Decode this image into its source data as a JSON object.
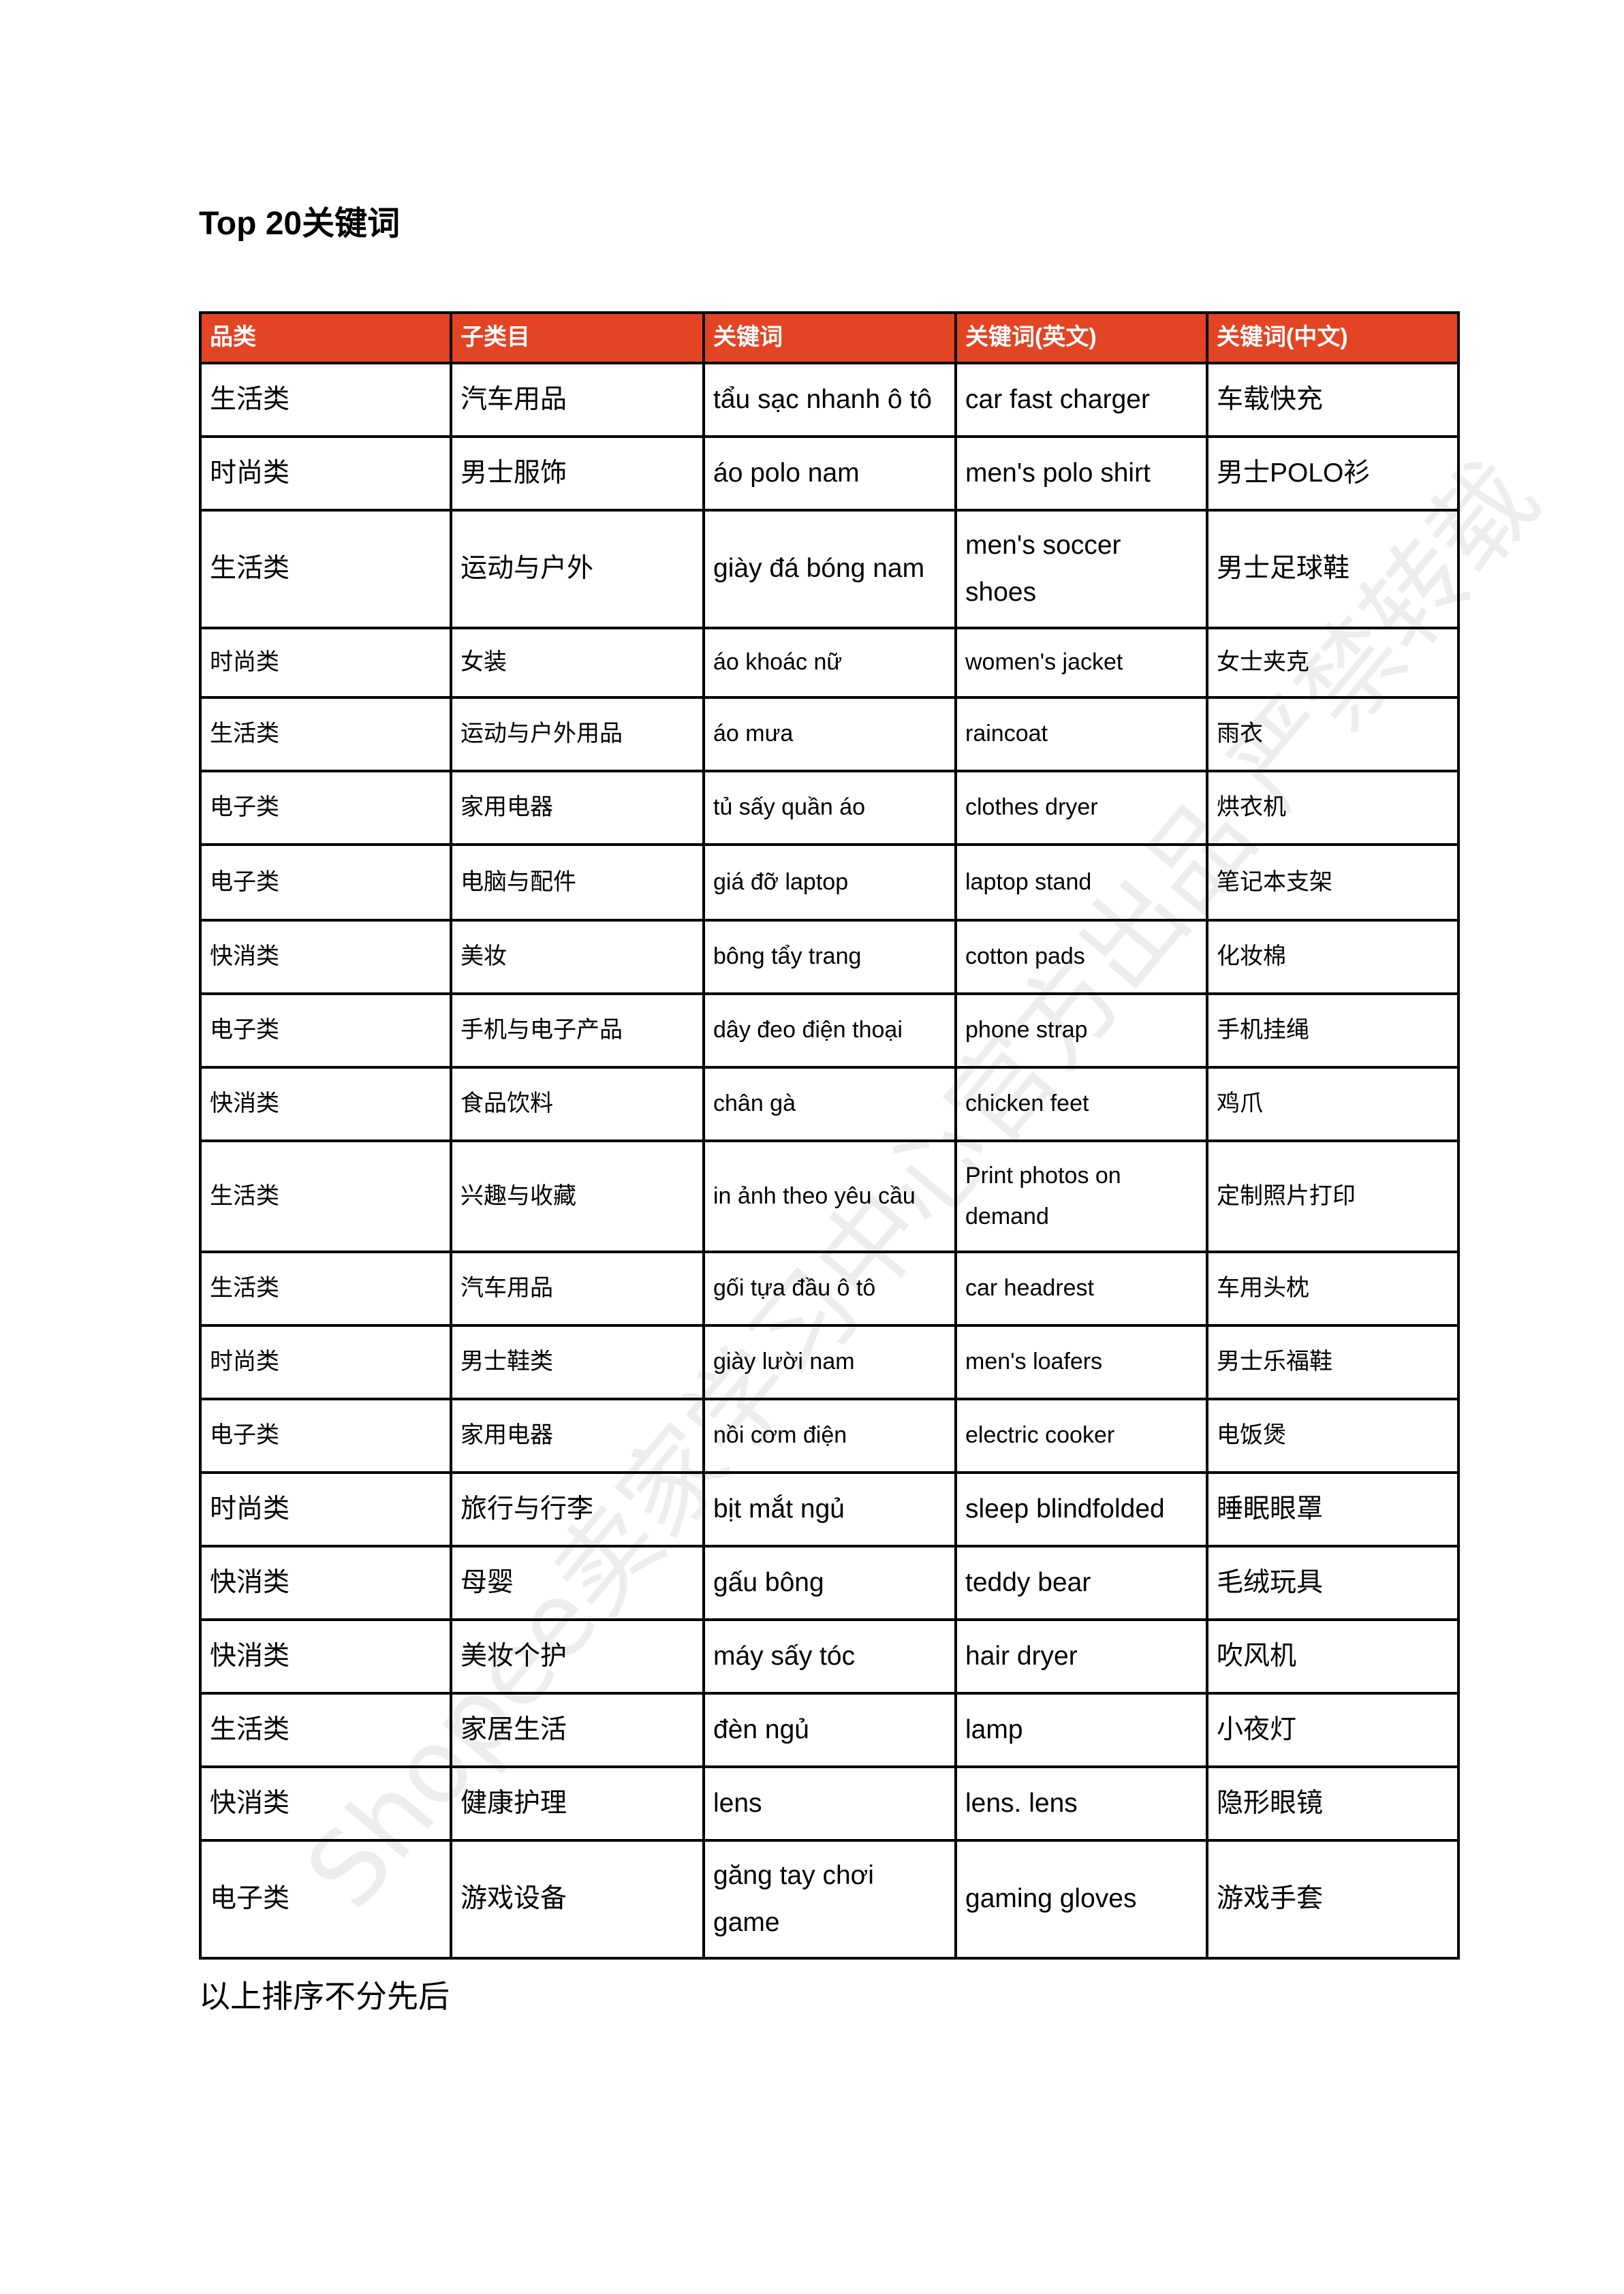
{
  "title": "Top 20关键词",
  "accent_color": "#e34424",
  "table": {
    "headers": [
      "品类",
      "子类目",
      "关键词",
      "关键词(英文)",
      "关键词(中文)"
    ],
    "rows": [
      [
        "生活类",
        "汽车用品",
        "tẩu sạc nhanh ô tô",
        "car fast charger",
        "车载快充"
      ],
      [
        "时尚类",
        "男士服饰",
        "áo polo nam",
        "men's polo shirt",
        "男士POLO衫"
      ],
      [
        "生活类",
        "运动与户外",
        "giày đá bóng nam",
        "men's soccer shoes",
        "男士足球鞋"
      ],
      [
        "时尚类",
        "女装",
        "áo khoác nữ",
        "women's jacket",
        "女士夹克"
      ],
      [
        "生活类",
        "运动与户外用品",
        "áo mưa",
        "raincoat",
        "雨衣"
      ],
      [
        "电子类",
        "家用电器",
        "tủ sấy quần áo",
        "clothes dryer",
        "烘衣机"
      ],
      [
        "电子类",
        "电脑与配件",
        "giá đỡ laptop",
        "laptop stand",
        "笔记本支架"
      ],
      [
        "快消类",
        "美妆",
        "bông tẩy trang",
        "cotton pads",
        "化妆棉"
      ],
      [
        "电子类",
        "手机与电子产品",
        "dây đeo điện thoại",
        "phone strap",
        "手机挂绳"
      ],
      [
        "快消类",
        "食品饮料",
        "chân gà",
        "chicken feet",
        "鸡爪"
      ],
      [
        "生活类",
        "兴趣与收藏",
        "in ảnh theo yêu cầu",
        "Print photos on demand",
        "定制照片打印"
      ],
      [
        "生活类",
        "汽车用品",
        "gối tựa đầu ô tô",
        "car headrest",
        "车用头枕"
      ],
      [
        "时尚类",
        "男士鞋类",
        "giày lười nam",
        "men's loafers",
        "男士乐福鞋"
      ],
      [
        "电子类",
        "家用电器",
        "nồi cơm điện",
        "electric cooker",
        "电饭煲"
      ],
      [
        "时尚类",
        "旅行与行李",
        "bịt mắt ngủ",
        "sleep blindfolded",
        "睡眠眼罩"
      ],
      [
        "快消类",
        "母婴",
        "gấu bông",
        "teddy bear",
        "毛绒玩具"
      ],
      [
        "快消类",
        "美妆个护",
        "máy sấy tóc",
        "hair dryer",
        "吹风机"
      ],
      [
        "生活类",
        "家居生活",
        "đèn ngủ",
        "lamp",
        "小夜灯"
      ],
      [
        "快消类",
        "健康护理",
        "lens",
        "lens. lens",
        "隐形眼镜"
      ],
      [
        "电子类",
        "游戏设备",
        "găng tay chơi game",
        "gaming gloves",
        "游戏手套"
      ]
    ]
  },
  "footer": "以上排序不分先后",
  "watermark": "Shopee卖家学习中心官方出品 严禁转载"
}
